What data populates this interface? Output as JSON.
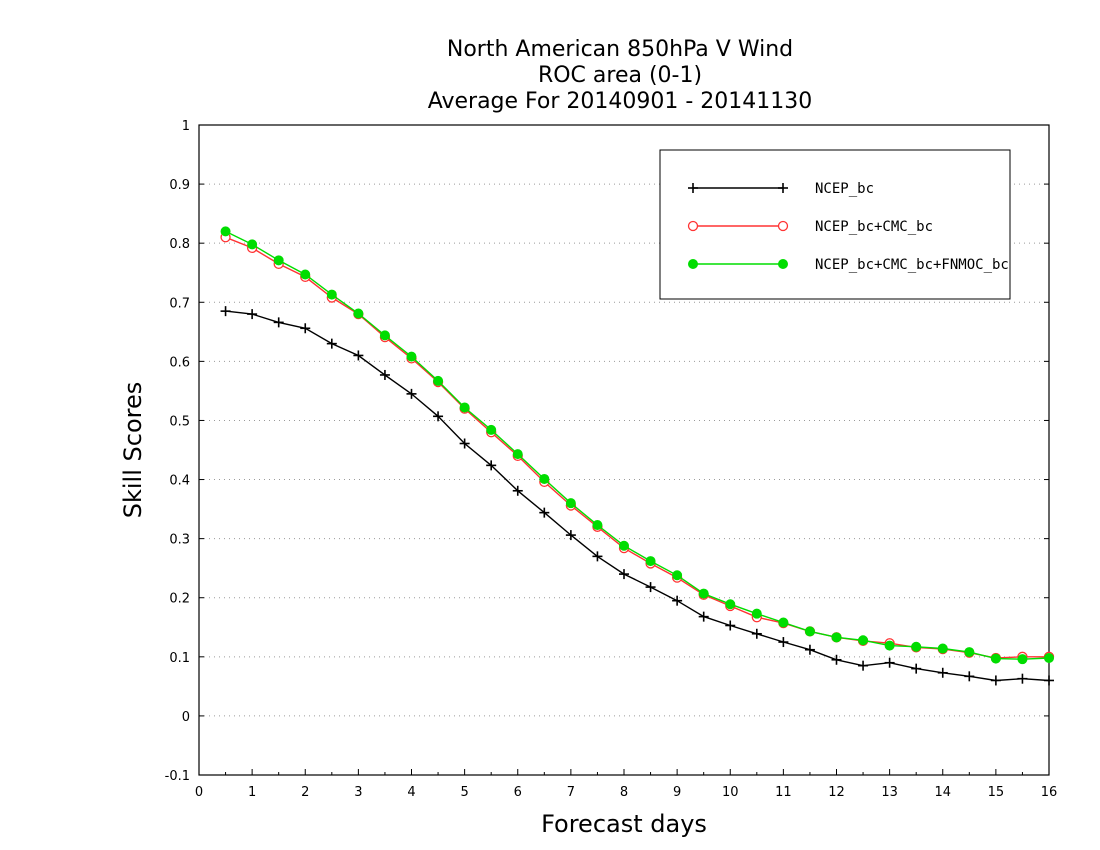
{
  "chart_data": {
    "type": "line",
    "title_lines": [
      "North American 850hPa V Wind",
      "ROC area (0-1)",
      "Average For 20140901 - 20141130"
    ],
    "xlabel": "Forecast days",
    "ylabel": "Skill Scores",
    "xlim": [
      0,
      16
    ],
    "ylim": [
      -0.1,
      1
    ],
    "xticks": [
      0,
      1,
      2,
      3,
      4,
      5,
      6,
      7,
      8,
      9,
      10,
      11,
      12,
      13,
      14,
      15,
      16
    ],
    "xtick_labels": [
      "0",
      "1",
      "2",
      "3",
      "4",
      "5",
      "6",
      "7",
      "8",
      "9",
      "10",
      "11",
      "12",
      "13",
      "14",
      "15",
      "16"
    ],
    "yticks": [
      -0.1,
      0,
      0.1,
      0.2,
      0.3,
      0.4,
      0.5,
      0.6,
      0.7,
      0.8,
      0.9,
      1
    ],
    "ytick_labels": [
      "-0.1",
      "0",
      "0.1",
      "0.2",
      "0.3",
      "0.4",
      "0.5",
      "0.6",
      "0.7",
      "0.8",
      "0.9",
      "1"
    ],
    "grid": "horizontal dotted",
    "legend_position": "top-right",
    "x": [
      0.5,
      1,
      1.5,
      2,
      2.5,
      3,
      3.5,
      4,
      4.5,
      5,
      5.5,
      6,
      6.5,
      7,
      7.5,
      8,
      8.5,
      9,
      9.5,
      10,
      10.5,
      11,
      11.5,
      12,
      12.5,
      13,
      13.5,
      14,
      14.5,
      15,
      15.5,
      16
    ],
    "series": [
      {
        "name": "NCEP_bc",
        "color": "#000000",
        "marker": "plus",
        "values": [
          0.685,
          0.68,
          0.666,
          0.656,
          0.63,
          0.61,
          0.577,
          0.545,
          0.507,
          0.461,
          0.424,
          0.381,
          0.344,
          0.306,
          0.27,
          0.24,
          0.218,
          0.195,
          0.168,
          0.153,
          0.139,
          0.125,
          0.112,
          0.095,
          0.085,
          0.09,
          0.08,
          0.073,
          0.067,
          0.06,
          0.063,
          0.06
        ]
      },
      {
        "name": "NCEP_bc+CMC_bc",
        "color": "#ff3333",
        "marker": "open-circle",
        "values": [
          0.81,
          0.792,
          0.765,
          0.743,
          0.708,
          0.68,
          0.641,
          0.605,
          0.565,
          0.52,
          0.48,
          0.44,
          0.396,
          0.356,
          0.32,
          0.284,
          0.258,
          0.234,
          0.205,
          0.186,
          0.167,
          0.157,
          0.143,
          0.133,
          0.127,
          0.123,
          0.116,
          0.113,
          0.107,
          0.098,
          0.1,
          0.1
        ]
      },
      {
        "name": "NCEP_bc+CMC_bc+FNMOC_bc",
        "color": "#00dd00",
        "marker": "filled-circle",
        "values": [
          0.82,
          0.798,
          0.771,
          0.747,
          0.713,
          0.681,
          0.644,
          0.608,
          0.567,
          0.522,
          0.484,
          0.443,
          0.401,
          0.36,
          0.323,
          0.288,
          0.262,
          0.238,
          0.207,
          0.189,
          0.173,
          0.158,
          0.143,
          0.133,
          0.128,
          0.119,
          0.117,
          0.114,
          0.108,
          0.097,
          0.096,
          0.098
        ]
      }
    ]
  }
}
